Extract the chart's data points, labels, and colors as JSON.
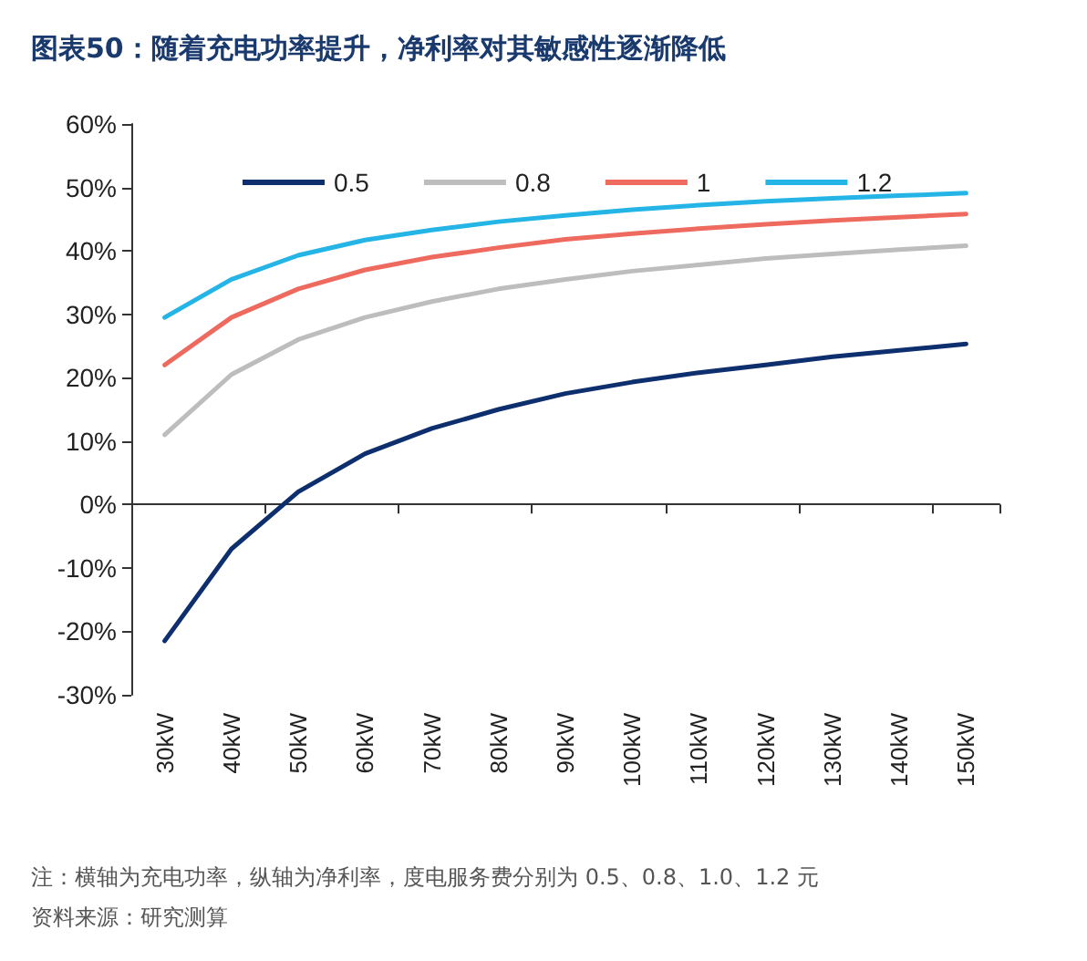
{
  "chart_data": {
    "type": "line",
    "title": "图表50：随着充电功率提升，净利率对其敏感性逐渐降低",
    "categories": [
      "30kW",
      "40kW",
      "50kW",
      "60kW",
      "70kW",
      "80kW",
      "90kW",
      "100kW",
      "110kW",
      "120kW",
      "130kW",
      "140kW",
      "150kW"
    ],
    "series": [
      {
        "name": "0.5",
        "color": "#0e2f6e",
        "values": [
          -21.5,
          -7,
          2,
          8,
          12,
          15,
          17.5,
          19.3,
          20.8,
          22,
          23.3,
          24.3,
          25.3
        ]
      },
      {
        "name": "0.8",
        "color": "#bdbdbd",
        "values": [
          11,
          20.5,
          26,
          29.5,
          32,
          34,
          35.5,
          36.8,
          37.8,
          38.8,
          39.5,
          40.2,
          40.8
        ]
      },
      {
        "name": "1",
        "color": "#ee6a5f",
        "values": [
          22,
          29.5,
          34,
          37,
          39,
          40.5,
          41.8,
          42.7,
          43.5,
          44.2,
          44.8,
          45.3,
          45.8
        ]
      },
      {
        "name": "1.2",
        "color": "#25b4e6",
        "values": [
          29.5,
          35.5,
          39.3,
          41.7,
          43.3,
          44.6,
          45.6,
          46.5,
          47.2,
          47.8,
          48.3,
          48.7,
          49.1
        ]
      }
    ],
    "ylim": [
      -30,
      60
    ],
    "yticks": [
      {
        "value": -30,
        "label": "-30%"
      },
      {
        "value": -20,
        "label": "-20%"
      },
      {
        "value": -10,
        "label": "-10%"
      },
      {
        "value": 0,
        "label": "0%"
      },
      {
        "value": 10,
        "label": "10%"
      },
      {
        "value": 20,
        "label": "20%"
      },
      {
        "value": 30,
        "label": "30%"
      },
      {
        "value": 40,
        "label": "40%"
      },
      {
        "value": 50,
        "label": "50%"
      },
      {
        "value": 60,
        "label": "60%"
      }
    ],
    "legend": "top",
    "marker": "none",
    "line_style": "solid",
    "annotations": [
      "注：横轴为充电功率，纵轴为净利率，度电服务费分别为 0.5、0.8、1.0、1.2 元",
      "资料来源：研究测算"
    ]
  }
}
